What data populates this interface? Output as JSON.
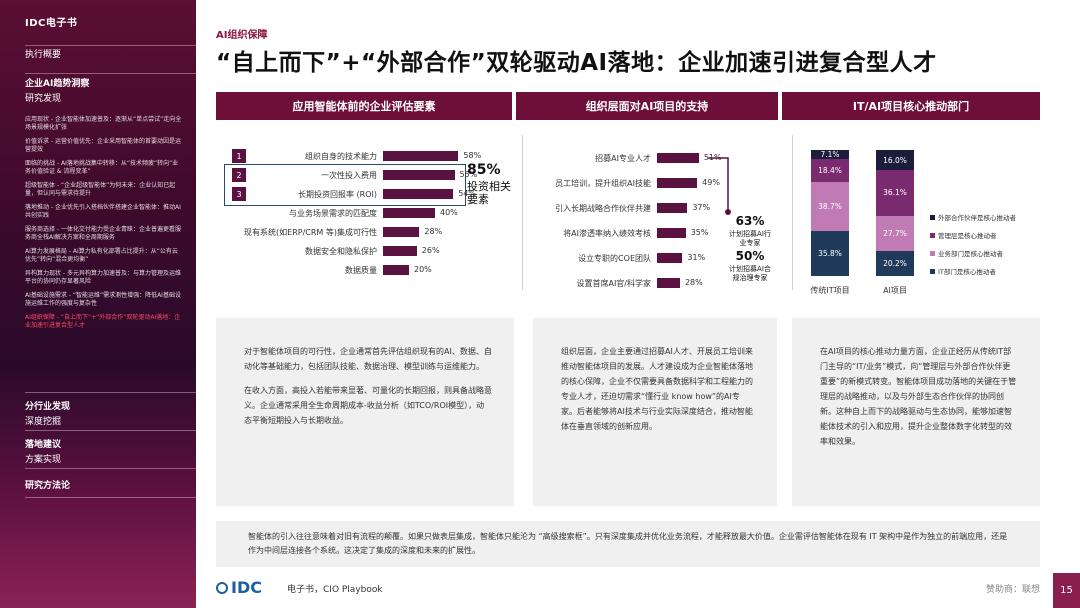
{
  "sidebar": {
    "title": "IDC电子书",
    "sections": [
      {
        "label": "执行概要"
      },
      {
        "label": "企业AI趋势洞察",
        "sub": "研究发现"
      }
    ],
    "items": [
      "应用现状 - 企业智能体加速普及：逐渐从“单点尝试”走向全场景规模化扩张",
      "价值诉求 - 运营价值优先：企业采用智能体的首要动因是运营提效",
      "面临的挑战 - AI落地挑战集中转移：从“技术频疲”转向“业务价值验证 & 流程变革”",
      "超级智能体 - “企业超级智能体”为何未来：企业认知已起量，但认同与需求待提升",
      "落地推动 - 企业优先引入搭档伙伴搭建企业智能体：推动AI共创实践",
      "服务商选择 - 一体化交付能力受企业青睐：企业普遍更看服务商全栈AI解决方案和全周期服务",
      "AI算力发展格局 - AI算力私有化部署占比提升：从“公有云优先”转向“混合更均衡”",
      "异构算力现状 - 多元异构算力加速普及：与算力管理及运维平台的协同仍存显著风险",
      "AI基础设施需求 - “智能运维”需求测性增强：降低AI基础设施运维工作的强度与复杂性",
      "AI组织保障 - “自上而下”+“外部合作”双轮驱动AI落地：企业加速引进复合型人才"
    ],
    "bottom_sections": [
      {
        "label": "分行业发现",
        "sub": "深度挖掘"
      },
      {
        "label": "落地建议",
        "sub": "方案实现"
      },
      {
        "label": "研究方法论"
      }
    ]
  },
  "header": {
    "eyebrow": "AI组织保障",
    "title": "“自上而下”+“外部合作”双轮驱动AI落地：企业加速引进复合型人才"
  },
  "columns": [
    {
      "title": "应用智能体前的企业评估要素"
    },
    {
      "title": "组织层面对AI项目的支持"
    },
    {
      "title": "IT/AI项目核心推动部门"
    }
  ],
  "left_chart": {
    "chart_data": {
      "type": "bar",
      "categories": [
        "组织自身的技术能力",
        "一次性投入费用",
        "长期投资回报率 (ROI)",
        "与业务场景需求的匹配度",
        "现有系统(如ERP/CRM 等)集成可行性",
        "数据安全和隐私保护",
        "数据质量"
      ],
      "values": [
        58,
        55,
        54,
        40,
        28,
        26,
        20
      ],
      "value_labels": [
        "58%",
        "55%",
        "54%",
        "40%",
        "28%",
        "26%",
        "20%"
      ],
      "ranks": [
        "1",
        "2",
        "3"
      ]
    },
    "callout_pct": "85%",
    "callout_text1": "投资相关",
    "callout_text2": "要素"
  },
  "mid_chart": {
    "chart_data": {
      "type": "bar",
      "categories": [
        "招募AI专业人才",
        "员工培训，提升组织AI技能",
        "引入长期战略合作伙伴共建",
        "将AI渗透率纳入绩效考核",
        "设立专职的COE团队",
        "设置首席AI官/科学家"
      ],
      "values": [
        51,
        49,
        37,
        35,
        31,
        28
      ],
      "value_labels": [
        "51%",
        "49%",
        "37%",
        "35%",
        "31%",
        "28%"
      ]
    },
    "note1_pct": "63%",
    "note1_text": [
      "计划招募AI行",
      "业专家"
    ],
    "note2_pct": "50%",
    "note2_text": [
      "计划招募AI合",
      "规治理专家"
    ]
  },
  "right_chart": {
    "chart_data": {
      "type": "bar",
      "stacked": true,
      "categories": [
        "传统IT项目",
        "AI项目"
      ],
      "series": [
        {
          "name": "IT部门是核心推动者",
          "values": [
            35.8,
            20.2
          ],
          "labels": [
            "35.8%",
            "20.2%"
          ],
          "color": "#1f3a5a"
        },
        {
          "name": "业务部门是核心推动者",
          "values": [
            38.7,
            27.7
          ],
          "labels": [
            "38.7%",
            "27.7%"
          ],
          "color": "#c07ab4"
        },
        {
          "name": "管理层是核心推动者",
          "values": [
            18.4,
            36.1
          ],
          "labels": [
            "18.4%",
            "36.1%"
          ],
          "color": "#7a2a6e"
        },
        {
          "name": "外部合作伙伴是核心推动者",
          "values": [
            7.1,
            16.0
          ],
          "labels": [
            "7.1%",
            "16.0%"
          ],
          "color": "#1c1d3c"
        }
      ]
    }
  },
  "text_boxes": [
    {
      "paragraphs": [
        "对于智能体项目的可行性，企业通常首先评估组织现有的AI、数据、自动化等基础能力，包括团队技能、数据治理、模型训练与运维能力。",
        "在收入方面，高投入若能带来显著、可量化的长期回报，则具备战略意义。企业通常采用全生命周期成本-收益分析（如TCO/ROI模型），动态平衡短期投入与长期收益。"
      ]
    },
    {
      "paragraphs": [
        "组织层面，企业主要通过招募AI人才、开展员工培训来推动智能体项目的发展。人才建设成为企业智能体落地的核心保障，企业不仅需要具备数据科学和工程能力的专业人才，还迫切需求“懂行业 know how”的AI专家。后者能够将AI技术与行业实际深度结合，推动智能体在垂直领域的创新应用。"
      ]
    },
    {
      "paragraphs": [
        "在AI项目的核心推动力量方面，企业正经历从传统IT部门主导的“IT/业务”模式，向“管理层与外部合作伙伴更重要”的新模式转变。智能体项目成功落地的关键在于管理层的战略推动，以及与外部生态合作伙伴的协同创新。这种自上而下的战略驱动与生态协同，能够加速智能体技术的引入和应用，提升企业整体数字化转型的效率和效果。"
      ]
    }
  ],
  "bottom_note": "智能体的引入往往意味着对旧有流程的颠覆。如果只做表层集成，智能体只能沦为 “高级搜索框”。只有深度集成并优化业务流程，才能释放最大价值。企业需评估智能体在现有 IT 架构中是作为独立的前端应用，还是作为中间层连接各个系统。这决定了集成的深度和未来的扩展性。",
  "footer": {
    "logo": "IDC",
    "text": "电子书，CIO Playbook",
    "sponsor": "赞助商：联想",
    "page": "15"
  }
}
